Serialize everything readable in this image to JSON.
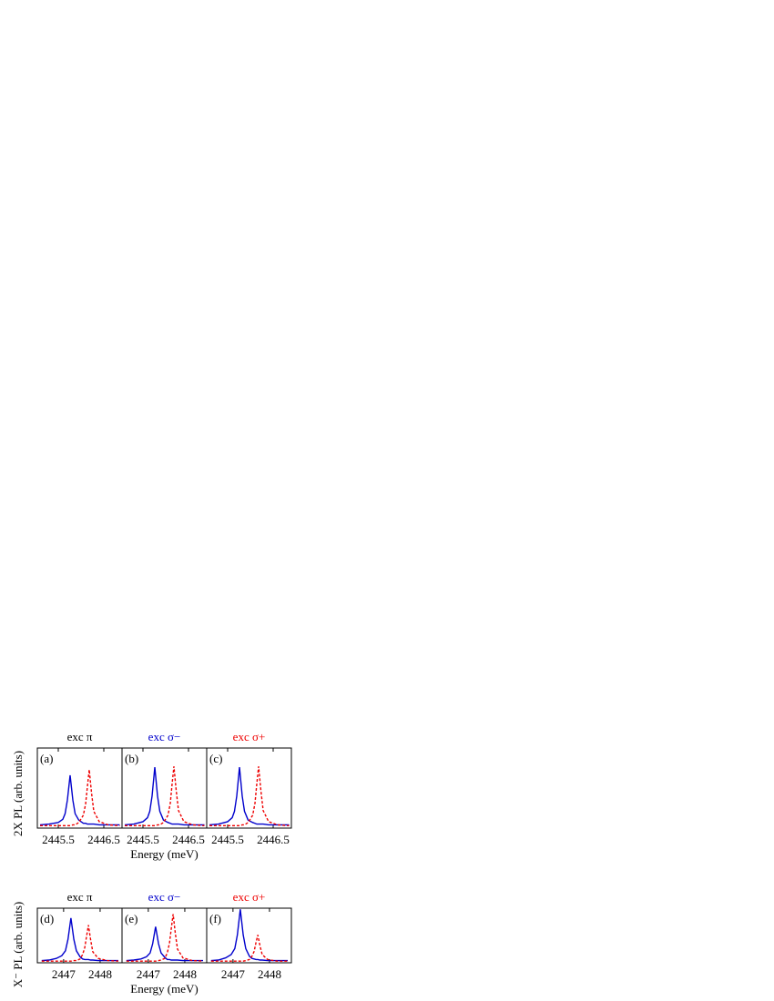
{
  "chart_data": [
    {
      "type": "line",
      "title": "exc π",
      "title_color": "#000000",
      "panel_label": "(a)",
      "ylabel": "2X PL (arb. units)",
      "x": [
        2445.1,
        2445.3,
        2445.5,
        2445.6,
        2445.65,
        2445.7,
        2445.76,
        2445.82,
        2445.87,
        2445.95,
        2446.05,
        2446.1,
        2446.14,
        2446.18,
        2446.23,
        2446.28,
        2446.4,
        2446.6,
        2446.85
      ],
      "xlim": [
        2445.04,
        2446.9
      ],
      "xticks": [
        2445.5,
        2446.5
      ],
      "ylim": [
        0,
        1
      ],
      "series": [
        {
          "color": "#0000cc",
          "style": "solid",
          "values": [
            0.04,
            0.05,
            0.07,
            0.11,
            0.18,
            0.35,
            0.66,
            0.35,
            0.18,
            0.1,
            0.06,
            0.06,
            0.05,
            0.05,
            0.05,
            0.05,
            0.04,
            0.04,
            0.04
          ]
        },
        {
          "color": "#ee0000",
          "style": "dashed",
          "values": [
            0.03,
            0.03,
            0.03,
            0.03,
            0.03,
            0.03,
            0.03,
            0.04,
            0.04,
            0.07,
            0.16,
            0.3,
            0.52,
            0.73,
            0.44,
            0.21,
            0.08,
            0.04,
            0.03
          ]
        }
      ]
    },
    {
      "type": "line",
      "title": "exc σ−",
      "title_color": "#0000cc",
      "panel_label": "(b)",
      "xlabel": "Energy (meV)",
      "x": [
        2445.1,
        2445.3,
        2445.5,
        2445.6,
        2445.65,
        2445.7,
        2445.76,
        2445.82,
        2445.87,
        2445.95,
        2446.05,
        2446.1,
        2446.14,
        2446.18,
        2446.23,
        2446.28,
        2446.4,
        2446.6,
        2446.85
      ],
      "xlim": [
        2445.04,
        2446.9
      ],
      "xticks": [
        2445.5,
        2446.5
      ],
      "ylim": [
        0,
        1
      ],
      "series": [
        {
          "color": "#0000cc",
          "style": "solid",
          "values": [
            0.04,
            0.05,
            0.08,
            0.13,
            0.21,
            0.4,
            0.76,
            0.4,
            0.21,
            0.1,
            0.07,
            0.06,
            0.05,
            0.05,
            0.05,
            0.05,
            0.04,
            0.04,
            0.04
          ]
        },
        {
          "color": "#ee0000",
          "style": "dashed",
          "values": [
            0.03,
            0.03,
            0.03,
            0.03,
            0.03,
            0.03,
            0.03,
            0.04,
            0.04,
            0.07,
            0.16,
            0.31,
            0.55,
            0.77,
            0.47,
            0.22,
            0.08,
            0.04,
            0.03
          ]
        }
      ]
    },
    {
      "type": "line",
      "title": "exc σ+",
      "title_color": "#ee0000",
      "panel_label": "(c)",
      "x": [
        2445.1,
        2445.3,
        2445.5,
        2445.6,
        2445.65,
        2445.7,
        2445.76,
        2445.82,
        2445.87,
        2445.95,
        2446.05,
        2446.1,
        2446.14,
        2446.18,
        2446.23,
        2446.28,
        2446.4,
        2446.6,
        2446.85
      ],
      "xlim": [
        2445.04,
        2446.9
      ],
      "xticks": [
        2445.5,
        2446.5
      ],
      "ylim": [
        0,
        1
      ],
      "series": [
        {
          "color": "#0000cc",
          "style": "solid",
          "values": [
            0.04,
            0.05,
            0.08,
            0.13,
            0.21,
            0.4,
            0.76,
            0.4,
            0.21,
            0.1,
            0.07,
            0.06,
            0.05,
            0.05,
            0.05,
            0.05,
            0.04,
            0.04,
            0.04
          ]
        },
        {
          "color": "#ee0000",
          "style": "dashed",
          "values": [
            0.03,
            0.03,
            0.03,
            0.03,
            0.03,
            0.03,
            0.03,
            0.04,
            0.04,
            0.07,
            0.16,
            0.31,
            0.55,
            0.77,
            0.47,
            0.22,
            0.08,
            0.04,
            0.03
          ]
        }
      ]
    },
    {
      "type": "line",
      "title": "exc π",
      "title_color": "#000000",
      "panel_label": "(d)",
      "ylabel": "X⁻ PL (arb. units)",
      "x": [
        2446.4,
        2446.6,
        2446.8,
        2446.95,
        2447.05,
        2447.12,
        2447.2,
        2447.28,
        2447.35,
        2447.45,
        2447.52,
        2447.58,
        2447.63,
        2447.68,
        2447.74,
        2447.8,
        2447.95,
        2448.2,
        2448.5
      ],
      "xlim": [
        2446.28,
        2448.6
      ],
      "xticks": [
        2447,
        2448
      ],
      "ylim": [
        0,
        1
      ],
      "series": [
        {
          "color": "#0000cc",
          "style": "solid",
          "values": [
            0.04,
            0.05,
            0.08,
            0.13,
            0.22,
            0.43,
            0.82,
            0.43,
            0.22,
            0.11,
            0.07,
            0.06,
            0.06,
            0.06,
            0.05,
            0.05,
            0.04,
            0.04,
            0.04
          ]
        },
        {
          "color": "#ee0000",
          "style": "dashed",
          "values": [
            0.03,
            0.03,
            0.03,
            0.03,
            0.03,
            0.03,
            0.03,
            0.04,
            0.04,
            0.07,
            0.15,
            0.28,
            0.49,
            0.69,
            0.42,
            0.2,
            0.08,
            0.04,
            0.03
          ]
        }
      ]
    },
    {
      "type": "line",
      "title": "exc σ−",
      "title_color": "#0000cc",
      "panel_label": "(e)",
      "xlabel": "Energy (meV)",
      "x": [
        2446.4,
        2446.6,
        2446.8,
        2446.95,
        2447.05,
        2447.12,
        2447.2,
        2447.28,
        2447.35,
        2447.45,
        2447.52,
        2447.58,
        2447.63,
        2447.68,
        2447.74,
        2447.8,
        2447.95,
        2448.2,
        2448.5
      ],
      "xlim": [
        2446.28,
        2448.6
      ],
      "xticks": [
        2447,
        2448
      ],
      "ylim": [
        0,
        1
      ],
      "series": [
        {
          "color": "#0000cc",
          "style": "solid",
          "values": [
            0.04,
            0.05,
            0.07,
            0.11,
            0.18,
            0.35,
            0.66,
            0.35,
            0.18,
            0.1,
            0.06,
            0.06,
            0.05,
            0.05,
            0.05,
            0.05,
            0.04,
            0.04,
            0.04
          ]
        },
        {
          "color": "#ee0000",
          "style": "dashed",
          "values": [
            0.03,
            0.03,
            0.03,
            0.03,
            0.03,
            0.03,
            0.03,
            0.04,
            0.05,
            0.08,
            0.18,
            0.36,
            0.63,
            0.89,
            0.54,
            0.25,
            0.09,
            0.04,
            0.03
          ]
        }
      ]
    },
    {
      "type": "line",
      "title": "exc σ+",
      "title_color": "#ee0000",
      "panel_label": "(f)",
      "x": [
        2446.4,
        2446.6,
        2446.8,
        2446.95,
        2447.05,
        2447.12,
        2447.2,
        2447.28,
        2447.35,
        2447.45,
        2447.52,
        2447.58,
        2447.63,
        2447.68,
        2447.74,
        2447.8,
        2447.95,
        2448.2,
        2448.5
      ],
      "xlim": [
        2446.28,
        2448.6
      ],
      "xticks": [
        2447,
        2448
      ],
      "ylim": [
        0,
        1
      ],
      "series": [
        {
          "color": "#0000cc",
          "style": "solid",
          "values": [
            0.04,
            0.05,
            0.09,
            0.15,
            0.26,
            0.51,
            0.98,
            0.51,
            0.26,
            0.12,
            0.08,
            0.07,
            0.06,
            0.06,
            0.05,
            0.05,
            0.04,
            0.04,
            0.04
          ]
        },
        {
          "color": "#ee0000",
          "style": "dashed",
          "values": [
            0.03,
            0.03,
            0.03,
            0.03,
            0.03,
            0.03,
            0.03,
            0.03,
            0.04,
            0.06,
            0.12,
            0.21,
            0.37,
            0.51,
            0.31,
            0.15,
            0.06,
            0.03,
            0.03
          ]
        }
      ]
    }
  ]
}
